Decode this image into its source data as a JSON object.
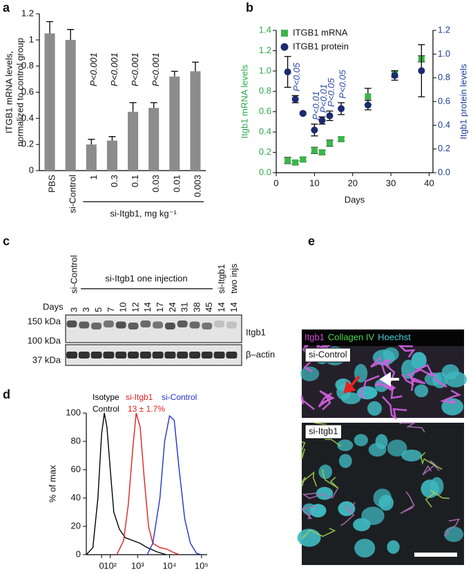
{
  "panel_labels": [
    "a",
    "b",
    "c",
    "d",
    "e"
  ],
  "chart_data": [
    {
      "type": "bar",
      "ylabel": [
        "ITGB1 mRNA levels,",
        "normalized to control group"
      ],
      "categories": [
        "PBS",
        "si-Control",
        "1",
        "0.3",
        "0.1",
        "0.03",
        "0.01",
        "0.003"
      ],
      "values": [
        1.05,
        1.0,
        0.2,
        0.23,
        0.45,
        0.48,
        0.72,
        0.76
      ],
      "errors": [
        0.09,
        0.08,
        0.04,
        0.03,
        0.07,
        0.04,
        0.04,
        0.07
      ],
      "color": "#8c8c8c",
      "ylim": [
        0,
        1.2
      ],
      "yticks": [
        0,
        0.2,
        0.4,
        0.6,
        0.8,
        1,
        1.2
      ],
      "groups": [
        {
          "label": "si-Itgb1, mg kg⁻¹",
          "start": 2,
          "end": 7
        }
      ],
      "annotations": [
        {
          "index": 2,
          "text": "P<0.001"
        },
        {
          "index": 3,
          "text": "P<0.001"
        },
        {
          "index": 4,
          "text": "P<0.001"
        },
        {
          "index": 5,
          "text": "P<0.001"
        }
      ]
    },
    {
      "type": "scatter",
      "xlabel": "Days",
      "ylabel": "Itgb1 mRNA levels",
      "y2label": "Itgb1 protein levels",
      "ylabel_color": "#2eaa4a",
      "y2label_color": "#1f3c9a",
      "x": [
        3,
        5,
        7,
        10,
        12,
        14,
        17,
        24,
        31,
        38
      ],
      "series": [
        {
          "name": "ITGB1 mRNA",
          "color": "#3cb44b",
          "marker": "square",
          "values": [
            0.12,
            0.1,
            0.13,
            0.22,
            0.2,
            0.29,
            0.33,
            0.75,
            0.97,
            1.12
          ],
          "errors": [
            0.03,
            0.02,
            0.02,
            0.03,
            0.02,
            0.03,
            0.02,
            0.08,
            0.03,
            0.03
          ]
        },
        {
          "name": "ITGB1 protein",
          "color": "#1c2a6e",
          "marker": "circle",
          "axis": "y2",
          "values": [
            0.85,
            0.62,
            0.5,
            0.36,
            0.44,
            0.48,
            0.54,
            0.57,
            0.82,
            0.86
          ],
          "errors": [
            0.13,
            0.03,
            0.01,
            0.05,
            0.03,
            0.04,
            0.05,
            0.04,
            0.04,
            0.22
          ]
        }
      ],
      "xlim": [
        0,
        41
      ],
      "xticks": [
        0,
        10,
        20,
        30,
        40
      ],
      "ylim": [
        0,
        1.4
      ],
      "yticks": [
        {
          "value": 0,
          "label": "0.0"
        },
        0.2,
        0.4,
        0.6,
        0.8,
        {
          "value": 1,
          "label": "1.0"
        },
        1.2,
        1.4
      ],
      "y2lim": [
        0,
        1.2
      ],
      "y2ticks": [
        {
          "value": 0,
          "label": "0.0"
        },
        0.2,
        0.4,
        0.6,
        0.8,
        {
          "value": 1,
          "label": "1.0"
        },
        1.2
      ],
      "legend": "upper left",
      "annotations": [
        {
          "x": 5,
          "text": "P<0.05"
        },
        {
          "x": 10,
          "text": "P<0.01"
        },
        {
          "x": 12,
          "text": "P<0.01"
        },
        {
          "x": 14,
          "text": "P<0.05"
        },
        {
          "x": 17,
          "text": "P<0.05"
        }
      ],
      "annotation_color": "#2a4aa8"
    },
    {
      "type": "line",
      "ylabel": "% of max",
      "xscale": "asinh",
      "asinh_cofactor": 150,
      "series": [
        {
          "name": "Isotype Control",
          "color": "#000000",
          "x": [
            -200,
            -100,
            -40,
            0,
            30,
            60,
            100,
            150,
            250,
            400,
            700,
            1200,
            2000,
            4000,
            8000
          ],
          "values": [
            0,
            5,
            40,
            85,
            100,
            90,
            60,
            30,
            18,
            12,
            10,
            8,
            5,
            2,
            0
          ]
        },
        {
          "name": "si-Itgb1",
          "color": "#e0201e",
          "x": [
            200,
            350,
            500,
            700,
            900,
            1200,
            1600,
            2200,
            3000,
            5000,
            8000,
            12000,
            20000
          ],
          "values": [
            0,
            10,
            35,
            75,
            100,
            90,
            55,
            20,
            8,
            5,
            4,
            2,
            0
          ]
        },
        {
          "name": "si-Control",
          "color": "#2030d0",
          "x": [
            2000,
            3000,
            5000,
            7000,
            10000,
            14000,
            20000,
            30000,
            45000,
            70000,
            100000
          ],
          "values": [
            0,
            8,
            40,
            80,
            98,
            95,
            60,
            25,
            8,
            1,
            0
          ]
        }
      ],
      "annotations": [
        {
          "text": "13 ± 1.7%",
          "color": "#e0201e"
        }
      ],
      "xlim": [
        -200,
        150000
      ],
      "xticks": [
        0,
        {
          "value": 100,
          "label": "10²"
        },
        {
          "value": 1000,
          "label": "10³"
        },
        {
          "value": 10000,
          "label": "10⁴"
        },
        {
          "value": 100000,
          "label": "10⁵"
        }
      ],
      "ylim": [
        0,
        100
      ],
      "yticks": [
        0,
        20,
        40,
        60,
        80,
        100
      ]
    }
  ],
  "blot": {
    "groups": [
      [
        "si-Control"
      ],
      [
        "si-Itgb1 one injection"
      ],
      [
        "si-Itgb1",
        "two injs"
      ]
    ],
    "days_label": "Days",
    "lane_days": [
      3,
      3,
      5,
      7,
      10,
      12,
      14,
      17,
      24,
      31,
      38,
      45,
      14,
      14
    ],
    "markers": [
      "150 kDa",
      "100 kDa",
      "37 kDa"
    ],
    "bands": [
      "Itgb1",
      "β–actin"
    ]
  },
  "micrograph": {
    "channels": [
      {
        "name": "Itgb1",
        "color": "#d048d8"
      },
      {
        "name": "Collagen IV",
        "color": "#48d848"
      },
      {
        "name": "Hoechst",
        "color": "#48d0d8"
      }
    ],
    "conditions": [
      "si-Control",
      "si-Itgb1"
    ]
  }
}
